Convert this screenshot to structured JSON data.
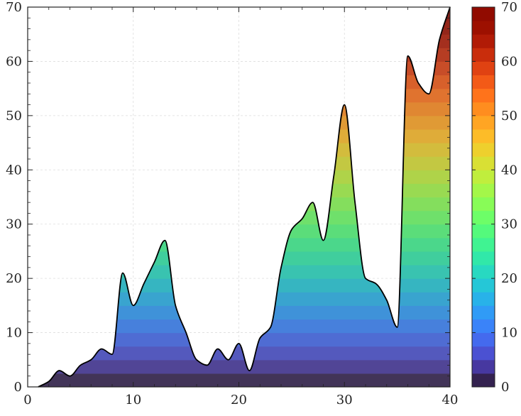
{
  "chart_data": {
    "type": "area",
    "title": "",
    "xlabel": "",
    "ylabel": "",
    "xlim": [
      0,
      40
    ],
    "ylim": [
      0,
      70
    ],
    "x_ticks": [
      "0",
      "10",
      "20",
      "30",
      "40"
    ],
    "y_ticks": [
      "0",
      "10",
      "20",
      "30",
      "40",
      "50",
      "60",
      "70"
    ],
    "grid": true,
    "colormap": "turbo",
    "colorbar": {
      "position": "right",
      "range": [
        0,
        70
      ],
      "levels": 28,
      "ticks": [
        "0",
        "10",
        "20",
        "30",
        "40",
        "50",
        "60",
        "70"
      ]
    },
    "series": [
      {
        "x": [
          1,
          2,
          3,
          4,
          5,
          6,
          7,
          8,
          9,
          10,
          11,
          12,
          13,
          14,
          15,
          16,
          17,
          18,
          19,
          20,
          21,
          22,
          23,
          24,
          25,
          26,
          27,
          28,
          29,
          30,
          31,
          32,
          33,
          34,
          35,
          36,
          37,
          38,
          39,
          40
        ],
        "values": [
          0,
          1,
          3,
          2,
          4,
          5,
          7,
          6,
          21,
          15,
          19,
          23,
          27,
          15,
          10,
          5,
          4,
          7,
          5,
          8,
          3,
          9,
          11,
          22,
          29,
          31,
          34,
          27,
          39,
          52,
          34,
          20,
          19,
          16,
          11,
          61,
          56,
          54,
          64,
          70
        ]
      }
    ],
    "colors": {
      "outline": "#000000",
      "grid": "#dddddd",
      "axis": "#222222"
    }
  }
}
